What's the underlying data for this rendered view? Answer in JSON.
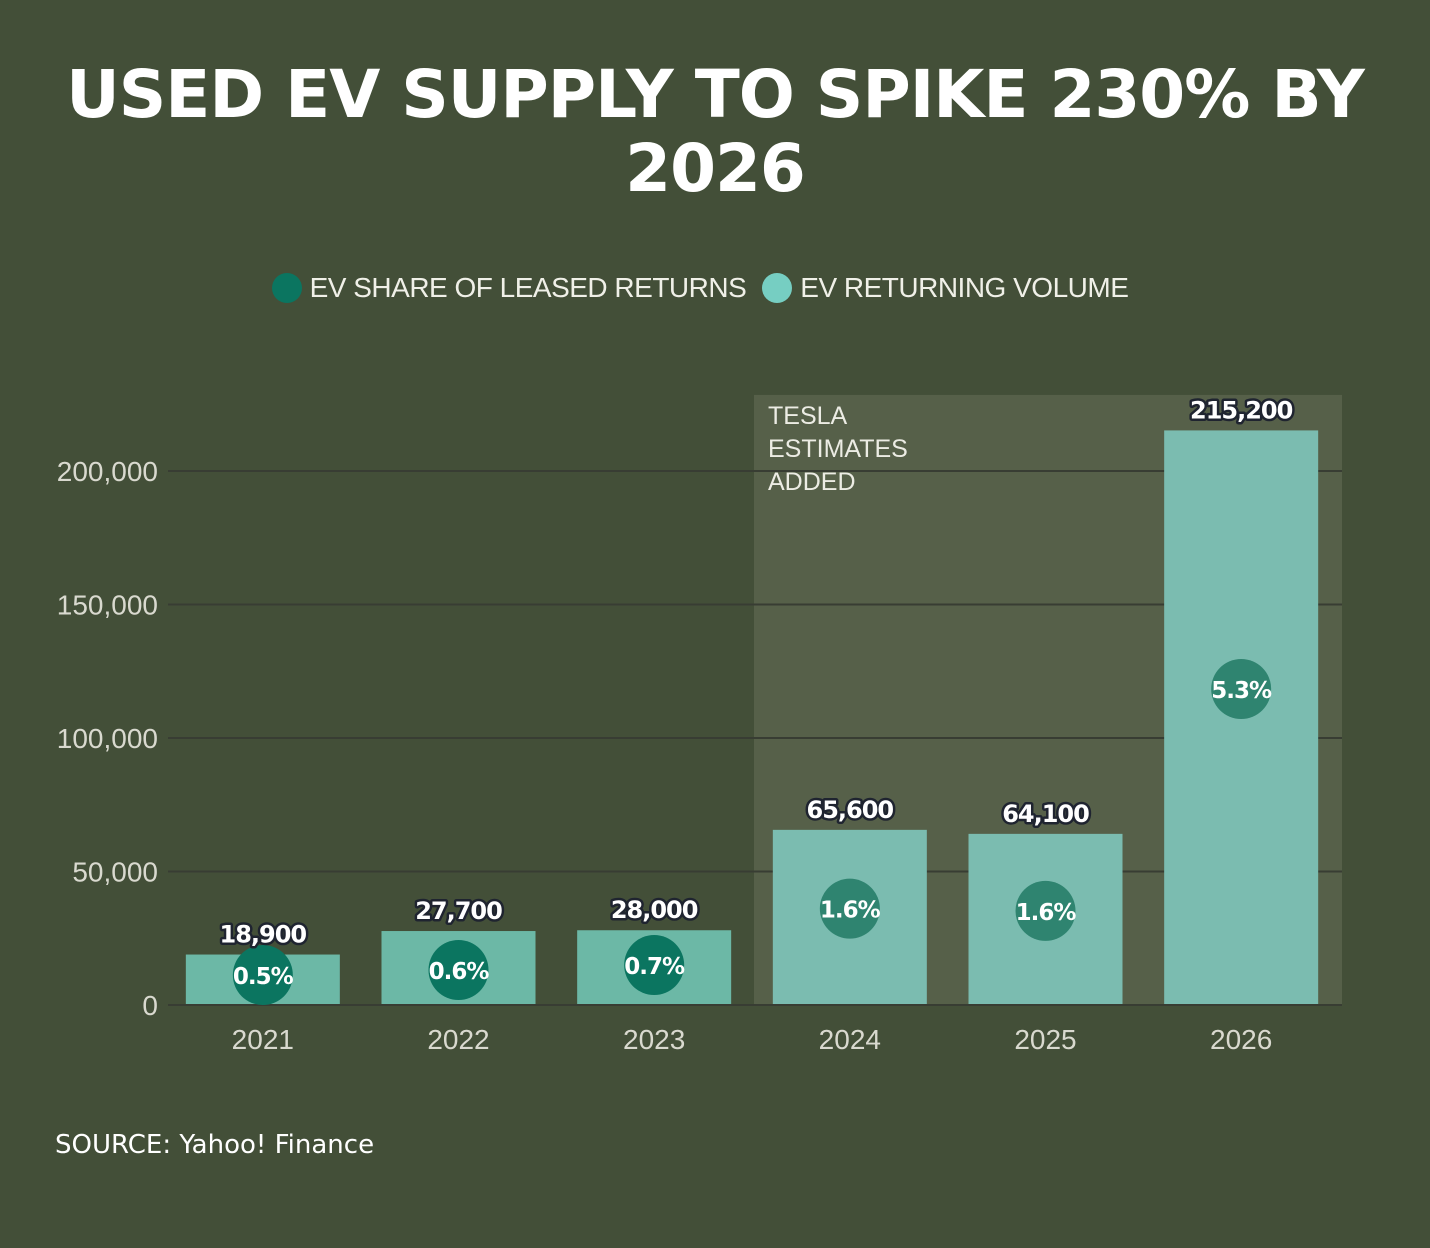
{
  "legend": [
    {
      "label": "EV SHARE OF LEASED RETURNS",
      "color": "#0b7560"
    },
    {
      "label": "EV RETURNING VOLUME",
      "color": "#76cec2"
    }
  ],
  "source": "SOURCE: Yahoo! Finance",
  "chart_data": {
    "type": "bar",
    "title": "USED EV SUPPLY TO SPIKE 230% BY 2026",
    "categories": [
      "2021",
      "2022",
      "2023",
      "2024",
      "2025",
      "2026"
    ],
    "series": [
      {
        "name": "EV RETURNING VOLUME",
        "values": [
          18900,
          27700,
          28000,
          65600,
          64100,
          215200
        ]
      },
      {
        "name": "EV SHARE OF LEASED RETURNS",
        "values": [
          0.5,
          0.6,
          0.7,
          1.6,
          1.6,
          5.3
        ]
      }
    ],
    "value_labels": [
      "18,900",
      "27,700",
      "28,000",
      "65,600",
      "64,100",
      "215,200"
    ],
    "share_labels": [
      "0.5%",
      "0.6%",
      "0.7%",
      "1.6%",
      "1.6%",
      "5.3%"
    ],
    "y_ticks": [
      0,
      50000,
      100000,
      150000,
      200000
    ],
    "y_tick_labels": [
      "0",
      "50,000",
      "100,000",
      "150,000",
      "200,000"
    ],
    "ylim": [
      0,
      230000
    ],
    "grid": true,
    "legend_position": "top-center",
    "annotation": {
      "lines": [
        "TESLA",
        "ESTIMATES",
        "ADDED"
      ],
      "applies_to": [
        "2024",
        "2025",
        "2026"
      ]
    },
    "colors": {
      "background": "#434f38",
      "bar_actual": "#6cb8a6",
      "bar_estimate": "#7bbcb0",
      "share_actual": "#0b7560",
      "share_estimate": "#2f8470",
      "highlight": "#566049",
      "grid": "#383d33"
    }
  }
}
